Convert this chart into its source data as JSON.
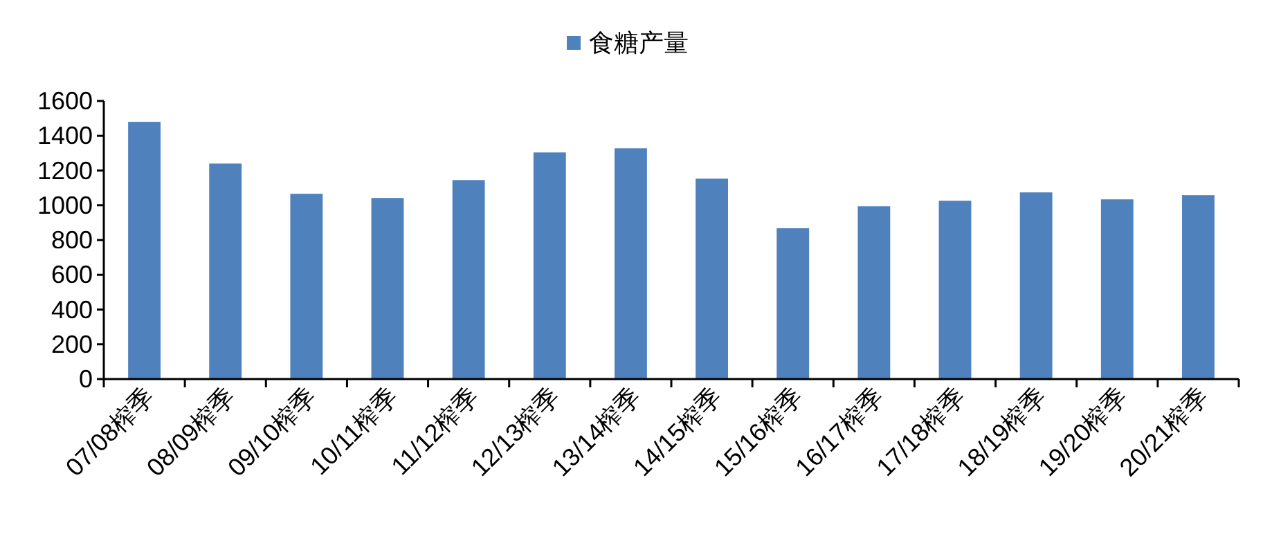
{
  "chart_data": {
    "type": "bar",
    "categories": [
      "07/08榨季",
      "08/09榨季",
      "09/10榨季",
      "10/11榨季",
      "11/12榨季",
      "12/13榨季",
      "13/14榨季",
      "14/15榨季",
      "15/16榨季",
      "16/17榨季",
      "17/18榨季",
      "18/19榨季",
      "19/20榨季",
      "20/21榨季"
    ],
    "series": [
      {
        "name": "食糖产量",
        "color": "#4f81bd",
        "values": [
          1480,
          1240,
          1066,
          1042,
          1145,
          1304,
          1328,
          1153,
          868,
          994,
          1026,
          1074,
          1034,
          1058
        ]
      }
    ],
    "ylim": [
      0,
      1600
    ],
    "yticks": [
      0,
      200,
      400,
      600,
      800,
      1000,
      1200,
      1400,
      1600
    ],
    "grid": false,
    "legend": "top"
  }
}
